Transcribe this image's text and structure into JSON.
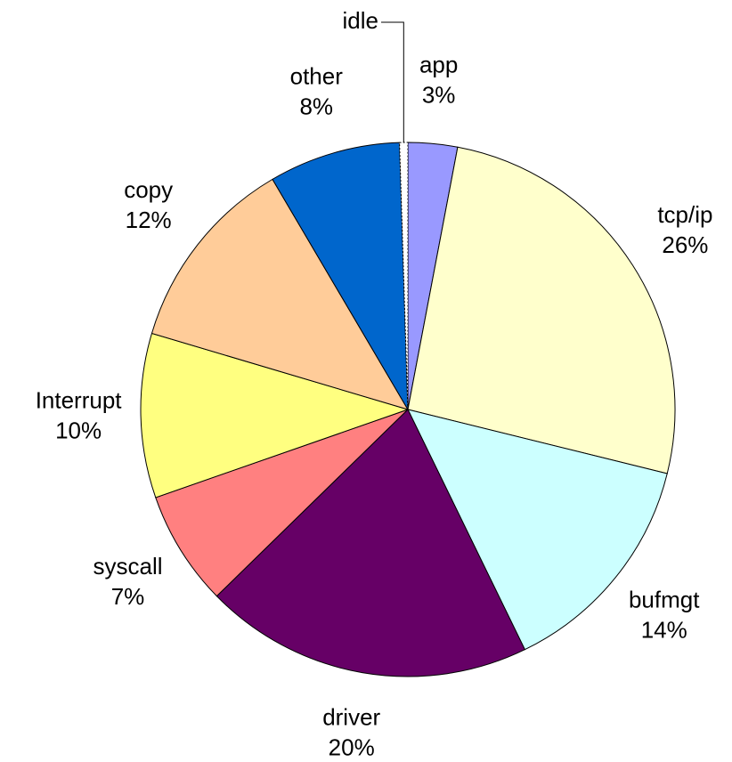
{
  "chart_data": {
    "type": "pie",
    "categories": [
      "app",
      "tcp/ip",
      "bufmgt",
      "driver",
      "syscall",
      "Interrupt",
      "copy",
      "other",
      "idle"
    ],
    "values": [
      3,
      26,
      14,
      20,
      7,
      10,
      12,
      8,
      0.5
    ],
    "value_labels": [
      "3%",
      "26%",
      "14%",
      "20%",
      "7%",
      "10%",
      "12%",
      "8%",
      null
    ],
    "colors": [
      "#9999ff",
      "#ffffcc",
      "#ccffff",
      "#660066",
      "#ff8080",
      "#ffff80",
      "#ffcc99",
      "#0066cc",
      "#ffffff"
    ]
  }
}
